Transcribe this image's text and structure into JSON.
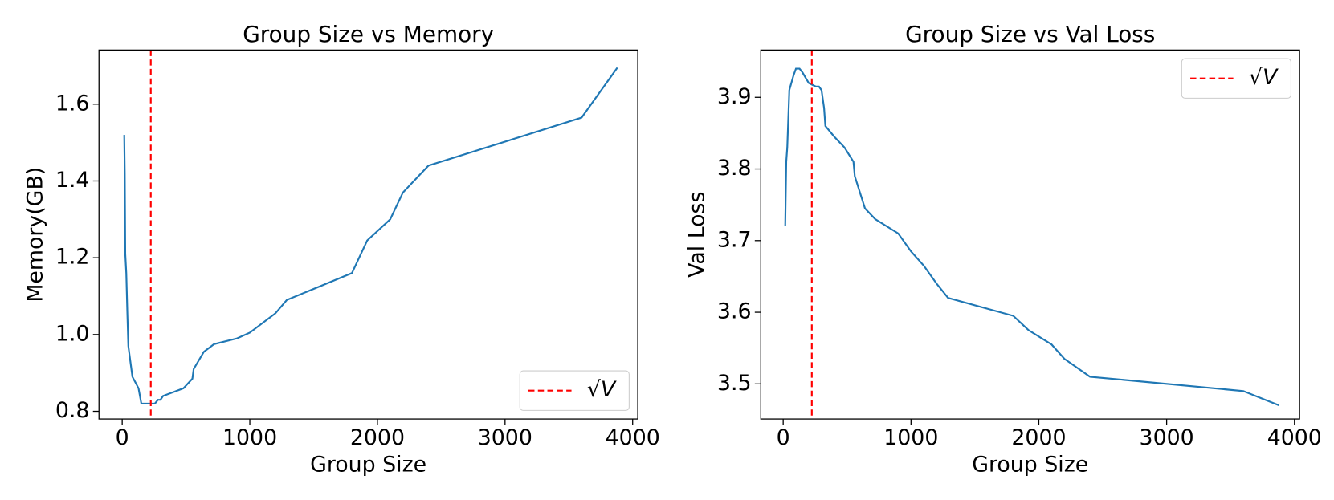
{
  "chart_data": [
    {
      "type": "line",
      "title": "Group Size vs Memory",
      "x_label": "Group Size",
      "y_label": "Memory(GB)",
      "x": [
        16,
        20,
        24,
        32,
        40,
        48,
        64,
        80,
        96,
        128,
        150,
        200,
        256,
        280,
        300,
        320,
        400,
        480,
        550,
        560,
        640,
        720,
        900,
        1000,
        1200,
        1290,
        1800,
        1920,
        2100,
        2200,
        2400,
        3600,
        3880
      ],
      "series": [
        {
          "color": "#1f77b4",
          "values": [
            1.52,
            1.42,
            1.21,
            1.16,
            1.06,
            0.97,
            0.93,
            0.89,
            0.88,
            0.86,
            0.82,
            0.82,
            0.82,
            0.83,
            0.83,
            0.84,
            0.85,
            0.86,
            0.885,
            0.91,
            0.955,
            0.975,
            0.99,
            1.005,
            1.055,
            1.09,
            1.16,
            1.245,
            1.3,
            1.37,
            1.44,
            1.565,
            1.695
          ]
        }
      ],
      "vlines": [
        {
          "x": 224,
          "label": "√V",
          "color": "#ff0000"
        }
      ],
      "legend": "lower right",
      "xlim": [
        -182,
        4040
      ],
      "xticks": [
        0,
        1000,
        2000,
        3000,
        4000
      ],
      "ylim": [
        0.78,
        1.741
      ],
      "yticks": [
        0.8,
        {
          "value": 1,
          "label": "1.0"
        },
        1.2,
        1.4,
        1.6
      ]
    },
    {
      "type": "line",
      "title": "Group Size vs Val Loss",
      "x_label": "Group Size",
      "y_label": "Val Loss",
      "x": [
        16,
        24,
        32,
        40,
        48,
        80,
        100,
        128,
        150,
        200,
        256,
        280,
        300,
        320,
        330,
        400,
        480,
        550,
        560,
        640,
        720,
        900,
        1000,
        1100,
        1200,
        1290,
        1800,
        1920,
        2100,
        2200,
        2400,
        3600,
        3880
      ],
      "series": [
        {
          "color": "#1f77b4",
          "values": [
            3.72,
            3.81,
            3.83,
            3.87,
            3.91,
            3.93,
            3.94,
            3.94,
            3.935,
            3.92,
            3.915,
            3.915,
            3.91,
            3.885,
            3.86,
            3.845,
            3.83,
            3.81,
            3.79,
            3.745,
            3.73,
            3.71,
            3.685,
            3.665,
            3.64,
            3.62,
            3.595,
            3.575,
            3.555,
            3.535,
            3.51,
            3.49,
            3.47
          ]
        }
      ],
      "vlines": [
        {
          "x": 224,
          "label": "√V",
          "color": "#ff0000"
        }
      ],
      "legend": "upper right",
      "xlim": [
        -175,
        4040
      ],
      "xticks": [
        0,
        1000,
        2000,
        3000,
        4000
      ],
      "ylim": [
        3.451,
        3.966
      ],
      "yticks": [
        3.5,
        3.6,
        3.7,
        3.8,
        3.9
      ]
    }
  ]
}
